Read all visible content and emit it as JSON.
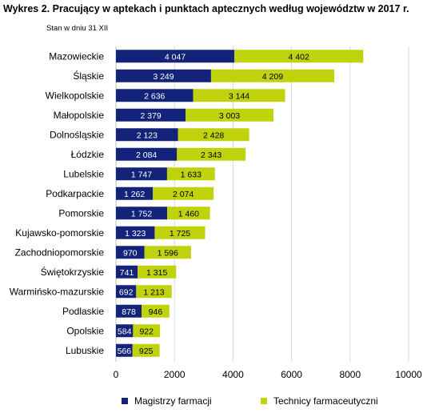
{
  "title": "Wykres 2. Pracujący w aptekach i punktach aptecznych według województw w 2017 r.",
  "subtitle": "Stan w dniu 31 XII",
  "colors": {
    "magistrzy": "#13237a",
    "technicy": "#bfd20b",
    "grid": "#d9d9d9"
  },
  "chart_data": {
    "type": "bar",
    "orientation": "horizontal",
    "stacked": true,
    "categories": [
      "Mazowieckie",
      "Śląskie",
      "Wielkopolskie",
      "Małopolskie",
      "Dolnośląskie",
      "Łódzkie",
      "Lubelskie",
      "Podkarpackie",
      "Pomorskie",
      "Kujawsko-pomorskie",
      "Zachodniopomorskie",
      "Świętokrzyskie",
      "Warmińsko-mazurskie",
      "Podlaskie",
      "Opolskie",
      "Lubuskie"
    ],
    "series": [
      {
        "name": "Magistrzy farmacji",
        "values": [
          4047,
          3249,
          2636,
          2379,
          2123,
          2084,
          1747,
          1262,
          1752,
          1323,
          970,
          741,
          692,
          878,
          584,
          566
        ],
        "labels": [
          "4 047",
          "3 249",
          "2 636",
          "2 379",
          "2 123",
          "2 084",
          "1 747",
          "1 262",
          "1 752",
          "1 323",
          "970",
          "741",
          "692",
          "878",
          "584",
          "566"
        ]
      },
      {
        "name": "Technicy farmaceutyczni",
        "values": [
          4402,
          4209,
          3144,
          3003,
          2428,
          2343,
          1633,
          2074,
          1460,
          1725,
          1596,
          1315,
          1213,
          946,
          922,
          925
        ],
        "labels": [
          "4 402",
          "4 209",
          "3 144",
          "3 003",
          "2 428",
          "2 343",
          "1 633",
          "2 074",
          "1 460",
          "1 725",
          "1 596",
          "1 315",
          "1 213",
          "946",
          "922",
          "925"
        ]
      }
    ],
    "xlim": [
      0,
      10000
    ],
    "xticks": [
      0,
      2000,
      4000,
      6000,
      8000,
      10000
    ],
    "xtick_labels": [
      "0",
      "2000",
      "4000",
      "6000",
      "8000",
      "10000"
    ],
    "grid": true,
    "legend_position": "bottom"
  }
}
